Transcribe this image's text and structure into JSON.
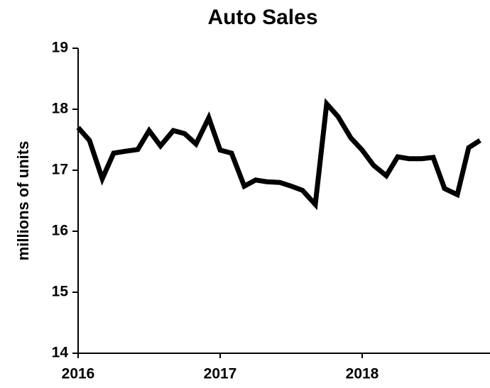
{
  "chart_data": {
    "type": "line",
    "title": "Auto Sales",
    "ylabel": "millions of units",
    "x": [
      2016,
      2016.08,
      2016.17,
      2016.25,
      2016.33,
      2016.42,
      2016.5,
      2016.58,
      2016.67,
      2016.75,
      2016.83,
      2016.92,
      2017,
      2017.08,
      2017.17,
      2017.25,
      2017.33,
      2017.42,
      2017.5,
      2017.58,
      2017.67,
      2017.75,
      2017.83,
      2017.92,
      2018,
      2018.08,
      2018.17,
      2018.25,
      2018.33,
      2018.42,
      2018.5,
      2018.58,
      2018.67,
      2018.75,
      2018.83
    ],
    "series": [
      {
        "name": "Auto Sales",
        "color": "#000000",
        "values": [
          17.7,
          17.49,
          16.86,
          17.28,
          17.31,
          17.34,
          17.65,
          17.4,
          17.65,
          17.6,
          17.43,
          17.86,
          17.33,
          17.28,
          16.74,
          16.84,
          16.81,
          16.8,
          16.74,
          16.67,
          16.44,
          18.09,
          17.88,
          17.53,
          17.33,
          17.08,
          16.91,
          17.22,
          17.19,
          17.19,
          17.21,
          16.7,
          16.6,
          17.37,
          17.49
        ]
      }
    ],
    "xlim": [
      2016,
      2018.9
    ],
    "xticks": [
      2016,
      2017,
      2018
    ],
    "ylim": [
      14,
      19
    ],
    "yticks": [
      14,
      15,
      16,
      17,
      18,
      19
    ]
  }
}
